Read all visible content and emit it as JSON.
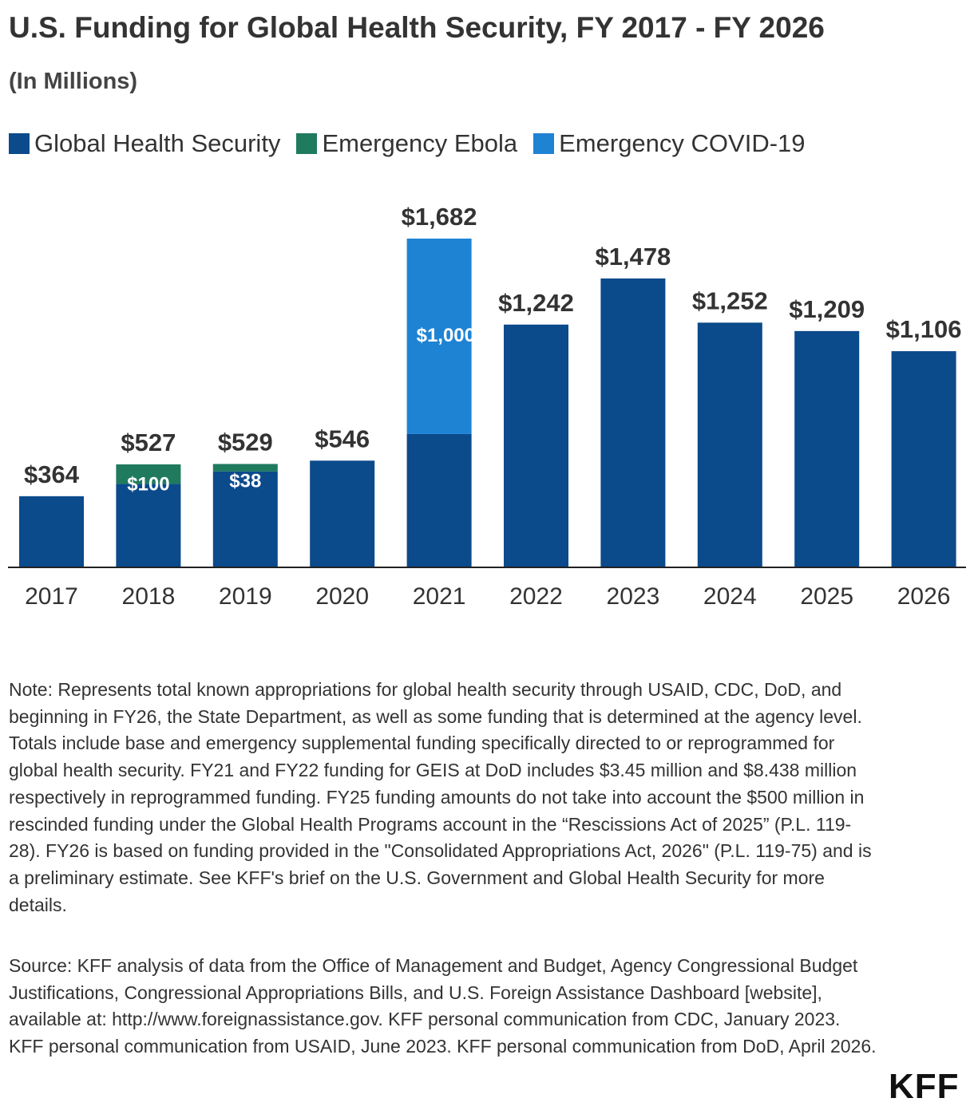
{
  "title": "U.S. Funding for Global Health Security, FY 2017 - FY 2026",
  "subtitle": "(In Millions)",
  "colors": {
    "ghs": "#0b4a8b",
    "ebola": "#1f7a5e",
    "covid": "#1f83d4",
    "axis": "#222222"
  },
  "legend": [
    {
      "label": "Global Health Security",
      "color": "#0b4a8b"
    },
    {
      "label": "Emergency Ebola",
      "color": "#1f7a5e"
    },
    {
      "label": "Emergency COVID-19",
      "color": "#1f83d4"
    }
  ],
  "chart_data": {
    "type": "bar",
    "stacked": true,
    "categories": [
      "2017",
      "2018",
      "2019",
      "2020",
      "2021",
      "2022",
      "2023",
      "2024",
      "2025",
      "2026"
    ],
    "series": [
      {
        "name": "Global Health Security",
        "values": [
          364,
          427,
          491,
          546,
          682,
          1242,
          1478,
          1252,
          1209,
          1106
        ]
      },
      {
        "name": "Emergency Ebola",
        "values": [
          0,
          100,
          38,
          0,
          0,
          0,
          0,
          0,
          0,
          0
        ]
      },
      {
        "name": "Emergency COVID-19",
        "values": [
          0,
          0,
          0,
          0,
          1000,
          0,
          0,
          0,
          0,
          0
        ]
      }
    ],
    "totals": [
      "$364",
      "$527",
      "$529",
      "$546",
      "$1,682",
      "$1,242",
      "$1,478",
      "$1,252",
      "$1,209",
      "$1,106"
    ],
    "segment_labels": [
      {
        "category": "2018",
        "series": "Emergency Ebola",
        "text": "$100"
      },
      {
        "category": "2019",
        "series": "Emergency Ebola",
        "text": "$38"
      },
      {
        "category": "2021",
        "series": "Emergency COVID-19",
        "text": "$1,000"
      }
    ],
    "ylim": [
      0,
      1682
    ],
    "grid": false
  },
  "note": "Note: Represents total known appropriations for global health security through USAID, CDC, DoD, and beginning in FY26, the State Department, as well as some funding that is determined at the agency level. Totals include base and emergency supplemental funding specifically directed to or reprogrammed for global health security. FY21 and FY22 funding for GEIS at DoD includes $3.45 million and $8.438 million respectively in reprogrammed funding. FY25 funding amounts do not take into account the $500 million in rescinded funding under the Global Health Programs account in the “Rescissions Act of 2025” (P.L. 119-28). FY26 is based on funding provided in the \"Consolidated Appropriations Act, 2026\" (P.L. 119-75) and is a preliminary estimate. See KFF's brief on the U.S. Government and Global Health Security for more details.",
  "source": "Source: KFF analysis of data from the Office of Management and Budget, Agency Congressional Budget Justifications, Congressional Appropriations Bills, and U.S. Foreign Assistance Dashboard [website], available at: http://www.foreignassistance.gov. KFF personal communication from CDC, January 2023. KFF personal communication from USAID, June 2023. KFF personal communication from DoD, April 2026.",
  "logo": "KFF"
}
